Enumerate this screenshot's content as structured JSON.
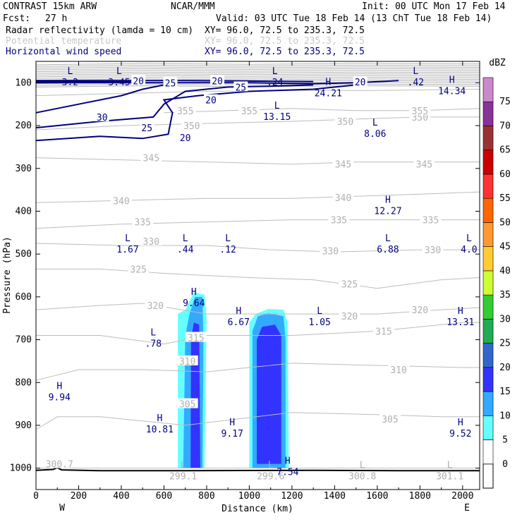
{
  "header": {
    "model": "CONTRAST 15km ARW",
    "center": "NCAR/MMM",
    "init": "Init: 00 UTC Mon 17 Feb 14",
    "fcst_label": "Fcst:",
    "fcst_value": "27 h",
    "valid": "Valid: 03 UTC Tue 18 Feb 14 (13 ChT Tue 18 Feb 14)"
  },
  "fields": [
    {
      "name": "Radar reflectivity (lamda = 10 cm)",
      "xy": "XY=  96.0, 72.5 to 235.3, 72.5",
      "color": "#000000"
    },
    {
      "name": "Potential temperature",
      "xy": "XY=  96.0, 72.5 to 235.3, 72.5",
      "color": "#c8c8c8"
    },
    {
      "name": "Horizontal wind speed",
      "xy": "XY=  96.0, 72.5 to 235.3, 72.5",
      "color": "#000080"
    }
  ],
  "chart_data": {
    "type": "cross-section",
    "xlabel": "Distance (km)",
    "ylabel": "Pressure (hPa)",
    "xlim": [
      0,
      2080
    ],
    "ylim": [
      1050,
      50
    ],
    "x_ticks": [
      0,
      200,
      400,
      600,
      800,
      1000,
      1200,
      1400,
      1600,
      1800,
      2000
    ],
    "y_ticks": [
      100,
      200,
      300,
      400,
      500,
      600,
      700,
      800,
      900,
      1000
    ],
    "x_end_labels": {
      "left": "W",
      "right": "E"
    },
    "colorbar": {
      "unit": "dBZ",
      "levels": [
        0,
        5,
        10,
        15,
        20,
        25,
        30,
        35,
        40,
        45,
        50,
        55,
        60,
        65,
        70,
        75
      ],
      "colors": [
        "#ffffff",
        "#66ffff",
        "#33aaff",
        "#3333ff",
        "#3366cc",
        "#22aa55",
        "#33cc33",
        "#ccff33",
        "#ffcc33",
        "#ff9933",
        "#ff6600",
        "#ff3333",
        "#cc0000",
        "#993333",
        "#883399",
        "#cc88cc"
      ]
    },
    "theta_contours": [
      {
        "value": 300,
        "pts": [
          [
            0,
            1000
          ],
          [
            2080,
            1000
          ]
        ]
      },
      {
        "value": 305,
        "pts": [
          [
            0,
            910
          ],
          [
            100,
            880
          ],
          [
            300,
            880
          ],
          [
            700,
            900
          ],
          [
            1200,
            870
          ],
          [
            1600,
            875
          ],
          [
            1900,
            880
          ],
          [
            2080,
            880
          ]
        ]
      },
      {
        "value": 310,
        "pts": [
          [
            0,
            795
          ],
          [
            200,
            770
          ],
          [
            500,
            770
          ],
          [
            800,
            775
          ],
          [
            1200,
            755
          ],
          [
            1600,
            760
          ],
          [
            2000,
            765
          ],
          [
            2080,
            765
          ]
        ]
      },
      {
        "value": 315,
        "pts": [
          [
            0,
            690
          ],
          [
            300,
            690
          ],
          [
            600,
            710
          ],
          [
            800,
            690
          ],
          [
            1200,
            690
          ],
          [
            1600,
            680
          ],
          [
            2000,
            660
          ],
          [
            2080,
            660
          ]
        ]
      },
      {
        "value": 320,
        "pts": [
          [
            0,
            630
          ],
          [
            300,
            620
          ],
          [
            500,
            615
          ],
          [
            800,
            640
          ],
          [
            1200,
            640
          ],
          [
            1600,
            640
          ],
          [
            1900,
            630
          ],
          [
            2080,
            625
          ]
        ]
      },
      {
        "value": 325,
        "pts": [
          [
            0,
            535
          ],
          [
            300,
            535
          ],
          [
            600,
            545
          ],
          [
            1000,
            555
          ],
          [
            1300,
            560
          ],
          [
            1600,
            580
          ],
          [
            1900,
            560
          ],
          [
            2080,
            555
          ]
        ]
      },
      {
        "value": 330,
        "pts": [
          [
            0,
            475
          ],
          [
            400,
            480
          ],
          [
            800,
            480
          ],
          [
            1100,
            490
          ],
          [
            1400,
            495
          ],
          [
            1800,
            490
          ],
          [
            2080,
            490
          ]
        ]
      },
      {
        "value": 335,
        "pts": [
          [
            0,
            440
          ],
          [
            400,
            430
          ],
          [
            800,
            425
          ],
          [
            1200,
            420
          ],
          [
            1500,
            420
          ],
          [
            1800,
            420
          ],
          [
            2080,
            420
          ]
        ]
      },
      {
        "value": 340,
        "pts": [
          [
            0,
            380
          ],
          [
            400,
            375
          ],
          [
            800,
            370
          ],
          [
            1200,
            370
          ],
          [
            1500,
            365
          ],
          [
            1800,
            360
          ],
          [
            2080,
            355
          ]
        ]
      },
      {
        "value": 345,
        "pts": [
          [
            0,
            275
          ],
          [
            400,
            280
          ],
          [
            800,
            285
          ],
          [
            1200,
            290
          ],
          [
            1500,
            285
          ],
          [
            1800,
            285
          ],
          [
            2080,
            285
          ]
        ]
      },
      {
        "value": 350,
        "pts": [
          [
            0,
            210
          ],
          [
            400,
            200
          ],
          [
            800,
            195
          ],
          [
            1200,
            190
          ],
          [
            1500,
            185
          ],
          [
            1800,
            180
          ],
          [
            2080,
            180
          ]
        ]
      },
      {
        "value": 355,
        "pts": [
          [
            600,
            170
          ],
          [
            900,
            165
          ],
          [
            1200,
            160
          ],
          [
            1500,
            165
          ],
          [
            1800,
            165
          ],
          [
            2080,
            160
          ]
        ]
      },
      {
        "value": 360,
        "pts": [
          [
            0,
            130
          ],
          [
            400,
            125
          ],
          [
            800,
            120
          ],
          [
            1200,
            118
          ],
          [
            1600,
            118
          ],
          [
            2080,
            115
          ]
        ]
      }
    ],
    "theta_labels": [
      {
        "v": "300.7",
        "x": 110,
        "p": 990
      },
      {
        "v": "305",
        "x": 1660,
        "p": 885
      },
      {
        "v": "305",
        "x": 710,
        "p": 850
      },
      {
        "v": "310",
        "x": 710,
        "p": 750
      },
      {
        "v": "310",
        "x": 1700,
        "p": 770
      },
      {
        "v": "315",
        "x": 750,
        "p": 695
      },
      {
        "v": "315",
        "x": 1630,
        "p": 680
      },
      {
        "v": "320",
        "x": 560,
        "p": 620
      },
      {
        "v": "320",
        "x": 1470,
        "p": 645
      },
      {
        "v": "320",
        "x": 1800,
        "p": 630
      },
      {
        "v": "325",
        "x": 480,
        "p": 535
      },
      {
        "v": "325",
        "x": 1470,
        "p": 570
      },
      {
        "v": "330",
        "x": 540,
        "p": 470
      },
      {
        "v": "330",
        "x": 1380,
        "p": 492
      },
      {
        "v": "330",
        "x": 1860,
        "p": 490
      },
      {
        "v": "335",
        "x": 500,
        "p": 425
      },
      {
        "v": "335",
        "x": 1420,
        "p": 420
      },
      {
        "v": "335",
        "x": 1850,
        "p": 420
      },
      {
        "v": "340",
        "x": 400,
        "p": 375
      },
      {
        "v": "340",
        "x": 1440,
        "p": 368
      },
      {
        "v": "345",
        "x": 540,
        "p": 275
      },
      {
        "v": "345",
        "x": 1440,
        "p": 290
      },
      {
        "v": "345",
        "x": 1820,
        "p": 290
      },
      {
        "v": "350",
        "x": 730,
        "p": 200
      },
      {
        "v": "350",
        "x": 1450,
        "p": 190
      },
      {
        "v": "350",
        "x": 1800,
        "p": 180
      },
      {
        "v": "355",
        "x": 700,
        "p": 165
      },
      {
        "v": "355",
        "x": 1000,
        "p": 165
      },
      {
        "v": "355",
        "x": 1800,
        "p": 165
      }
    ],
    "wind_contours": [
      {
        "value": 20,
        "pts": [
          [
            0,
            100
          ],
          [
            300,
            100
          ],
          [
            700,
            100
          ],
          [
            1000,
            100
          ],
          [
            1300,
            102
          ],
          [
            1500,
            100
          ],
          [
            1700,
            95
          ]
        ]
      },
      {
        "value": 25,
        "pts": [
          [
            0,
            95
          ],
          [
            300,
            95
          ],
          [
            700,
            95
          ],
          [
            1000,
            96
          ],
          [
            1300,
            97
          ]
        ]
      },
      {
        "value": 30,
        "pts": [
          [
            0,
            97
          ],
          [
            250,
            97
          ],
          [
            500,
            97
          ]
        ]
      },
      {
        "value": 20,
        "pts": [
          [
            0,
            235
          ],
          [
            300,
            225
          ],
          [
            500,
            230
          ],
          [
            620,
            220
          ],
          [
            640,
            170
          ],
          [
            600,
            140
          ],
          [
            760,
            130
          ],
          [
            1000,
            120
          ],
          [
            1300,
            115
          ],
          [
            1500,
            105
          ]
        ]
      },
      {
        "value": 25,
        "pts": [
          [
            0,
            205
          ],
          [
            300,
            190
          ],
          [
            550,
            180
          ],
          [
            600,
            150
          ],
          [
            700,
            120
          ],
          [
            900,
            110
          ],
          [
            1100,
            108
          ],
          [
            1300,
            105
          ]
        ]
      },
      {
        "value": 30,
        "pts": [
          [
            0,
            170
          ],
          [
            200,
            150
          ],
          [
            400,
            130
          ],
          [
            500,
            115
          ],
          [
            600,
            105
          ]
        ]
      }
    ],
    "wind_labels": [
      {
        "v": "20",
        "x": 480,
        "p": 95
      },
      {
        "v": "20",
        "x": 850,
        "p": 95
      },
      {
        "v": "20",
        "x": 1520,
        "p": 98
      },
      {
        "v": "25",
        "x": 630,
        "p": 100
      },
      {
        "v": "25",
        "x": 960,
        "p": 110
      },
      {
        "v": "30",
        "x": 310,
        "p": 180
      },
      {
        "v": "25",
        "x": 520,
        "p": 205
      },
      {
        "v": "20",
        "x": 820,
        "p": 140
      },
      {
        "v": "20",
        "x": 700,
        "p": 228
      }
    ],
    "extrema": [
      {
        "type": "L",
        "v": "3.2",
        "x": 160,
        "p": 85
      },
      {
        "type": "L",
        "v": "3.45",
        "x": 390,
        "p": 85
      },
      {
        "type": "L",
        "v": ".24",
        "x": 1120,
        "p": 85
      },
      {
        "type": "H",
        "v": "24.21",
        "x": 1370,
        "p": 110
      },
      {
        "type": "L",
        "v": ".42",
        "x": 1780,
        "p": 85
      },
      {
        "type": "H",
        "v": "14.34",
        "x": 1950,
        "p": 105
      },
      {
        "type": "L",
        "v": "13.15",
        "x": 1130,
        "p": 165
      },
      {
        "type": "L",
        "v": "8.06",
        "x": 1590,
        "p": 205
      },
      {
        "type": "H",
        "v": "12.27",
        "x": 1650,
        "p": 385
      },
      {
        "type": "L",
        "v": "1.67",
        "x": 430,
        "p": 475
      },
      {
        "type": "L",
        "v": ".44",
        "x": 700,
        "p": 475
      },
      {
        "type": "L",
        "v": ".12",
        "x": 900,
        "p": 475
      },
      {
        "type": "L",
        "v": "6.88",
        "x": 1650,
        "p": 475
      },
      {
        "type": "L",
        "v": "4.0",
        "x": 2030,
        "p": 475
      },
      {
        "type": "H",
        "v": "9.64",
        "x": 740,
        "p": 600
      },
      {
        "type": "H",
        "v": "6.67",
        "x": 950,
        "p": 645
      },
      {
        "type": "L",
        "v": "1.05",
        "x": 1330,
        "p": 645
      },
      {
        "type": "H",
        "v": "13.31",
        "x": 1990,
        "p": 645
      },
      {
        "type": "L",
        "v": ".78",
        "x": 550,
        "p": 695
      },
      {
        "type": "H",
        "v": "9.94",
        "x": 110,
        "p": 820
      },
      {
        "type": "H",
        "v": "10.81",
        "x": 580,
        "p": 895
      },
      {
        "type": "H",
        "v": "9.17",
        "x": 920,
        "p": 905
      },
      {
        "type": "H",
        "v": "9.52",
        "x": 1990,
        "p": 905
      },
      {
        "type": "L",
        "v": "299.1",
        "x": 690,
        "p": 1005
      },
      {
        "type": "L",
        "v": "299.6",
        "x": 1100,
        "p": 1005
      },
      {
        "type": "H",
        "v": "7.54",
        "x": 1180,
        "p": 995
      },
      {
        "type": "L",
        "v": "300.8",
        "x": 1530,
        "p": 1005
      },
      {
        "type": "L",
        "v": "301.1",
        "x": 1940,
        "p": 1005
      }
    ],
    "reflectivity_cells": [
      {
        "dbz": 5,
        "pts": [
          [
            665,
            1000
          ],
          [
            665,
            640
          ],
          [
            700,
            630
          ],
          [
            740,
            590
          ],
          [
            790,
            595
          ],
          [
            800,
            650
          ],
          [
            790,
            1000
          ]
        ]
      },
      {
        "dbz": 10,
        "pts": [
          [
            690,
            1000
          ],
          [
            700,
            690
          ],
          [
            720,
            640
          ],
          [
            745,
            600
          ],
          [
            780,
            600
          ],
          [
            785,
            700
          ],
          [
            780,
            1000
          ]
        ]
      },
      {
        "dbz": 15,
        "pts": [
          [
            725,
            1000
          ],
          [
            727,
            700
          ],
          [
            740,
            660
          ],
          [
            765,
            665
          ],
          [
            770,
            1000
          ]
        ]
      },
      {
        "dbz": 5,
        "pts": [
          [
            1000,
            1000
          ],
          [
            1000,
            660
          ],
          [
            1030,
            640
          ],
          [
            1090,
            628
          ],
          [
            1160,
            630
          ],
          [
            1180,
            660
          ],
          [
            1185,
            1000
          ]
        ]
      },
      {
        "dbz": 10,
        "pts": [
          [
            1015,
            1000
          ],
          [
            1015,
            680
          ],
          [
            1040,
            645
          ],
          [
            1090,
            638
          ],
          [
            1160,
            645
          ],
          [
            1170,
            700
          ],
          [
            1170,
            1000
          ]
        ]
      },
      {
        "dbz": 15,
        "pts": [
          [
            1035,
            990
          ],
          [
            1035,
            700
          ],
          [
            1060,
            670
          ],
          [
            1120,
            665
          ],
          [
            1150,
            690
          ],
          [
            1150,
            990
          ]
        ]
      }
    ]
  }
}
